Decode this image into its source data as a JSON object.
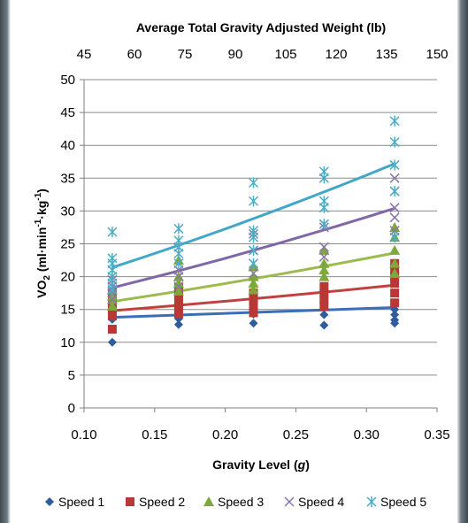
{
  "chart_data": {
    "type": "scatter",
    "title": "Average Total Gravity Adjusted Weight (lb)",
    "top_axis": {
      "label": "Average Total Gravity Adjusted Weight (lb)",
      "ticks": [
        "45",
        "60",
        "75",
        "90",
        "105",
        "120",
        "135",
        "150"
      ]
    },
    "xlabel_text": "Gravity Level (",
    "xlabel_var": "g",
    "xlabel_close": ")",
    "ylabel": {
      "main": "VO",
      "sub": "2",
      "rest": " (ml·min",
      "sup1": "-1",
      "mid": "·kg",
      "sup2": "-1",
      "end": ")"
    },
    "xlim": [
      0.1,
      0.35
    ],
    "ylim": [
      0,
      50
    ],
    "x_ticks": [
      "0.10",
      "0.15",
      "0.20",
      "0.25",
      "0.30",
      "0.35"
    ],
    "y_ticks": [
      "0",
      "5",
      "10",
      "15",
      "20",
      "25",
      "30",
      "35",
      "40",
      "45",
      "50"
    ],
    "grid": "horizontal",
    "legend": "bottom",
    "series": [
      {
        "name": "Speed 1",
        "color": "#2e5c9e",
        "marker": "diamond",
        "points": [
          [
            0.12,
            10.0
          ],
          [
            0.12,
            13.5
          ],
          [
            0.12,
            14.0
          ],
          [
            0.12,
            14.6
          ],
          [
            0.12,
            15.2
          ],
          [
            0.167,
            12.7
          ],
          [
            0.167,
            13.6
          ],
          [
            0.167,
            14.2
          ],
          [
            0.22,
            12.9
          ],
          [
            0.22,
            14.3
          ],
          [
            0.27,
            12.6
          ],
          [
            0.27,
            14.2
          ],
          [
            0.32,
            12.9
          ],
          [
            0.32,
            13.4
          ],
          [
            0.32,
            14.2
          ],
          [
            0.32,
            15.0
          ]
        ],
        "trend": [
          [
            0.12,
            13.8
          ],
          [
            0.32,
            15.3
          ]
        ],
        "trend_color": "#3a6fb7"
      },
      {
        "name": "Speed 2",
        "color": "#b83836",
        "marker": "square",
        "points": [
          [
            0.12,
            12.0
          ],
          [
            0.12,
            14.0
          ],
          [
            0.12,
            15.0
          ],
          [
            0.12,
            16.0
          ],
          [
            0.12,
            17.0
          ],
          [
            0.12,
            17.6
          ],
          [
            0.167,
            14.3
          ],
          [
            0.167,
            15.3
          ],
          [
            0.167,
            16.3
          ],
          [
            0.167,
            17.3
          ],
          [
            0.167,
            18.3
          ],
          [
            0.22,
            14.5
          ],
          [
            0.22,
            15.6
          ],
          [
            0.22,
            16.6
          ],
          [
            0.22,
            17.5
          ],
          [
            0.27,
            15.5
          ],
          [
            0.27,
            16.5
          ],
          [
            0.27,
            17.5
          ],
          [
            0.27,
            18.5
          ],
          [
            0.32,
            16.0
          ],
          [
            0.32,
            17.5
          ],
          [
            0.32,
            19.0
          ],
          [
            0.32,
            20.0
          ],
          [
            0.32,
            21.0
          ],
          [
            0.32,
            22.0
          ]
        ],
        "trend": [
          [
            0.12,
            14.8
          ],
          [
            0.32,
            18.7
          ]
        ],
        "trend_color": "#c0413f"
      },
      {
        "name": "Speed 3",
        "color": "#7ea83a",
        "marker": "triangle",
        "points": [
          [
            0.12,
            15.5
          ],
          [
            0.12,
            16.5
          ],
          [
            0.12,
            17.0
          ],
          [
            0.12,
            18.0
          ],
          [
            0.167,
            17.8
          ],
          [
            0.167,
            19.0
          ],
          [
            0.167,
            20.0
          ],
          [
            0.167,
            22.5
          ],
          [
            0.22,
            18.0
          ],
          [
            0.22,
            19.0
          ],
          [
            0.22,
            20.0
          ],
          [
            0.22,
            21.5
          ],
          [
            0.27,
            20.0
          ],
          [
            0.27,
            21.0
          ],
          [
            0.27,
            22.0
          ],
          [
            0.27,
            24.0
          ],
          [
            0.32,
            20.5
          ],
          [
            0.32,
            22.0
          ],
          [
            0.32,
            24.0
          ],
          [
            0.32,
            26.0
          ],
          [
            0.32,
            27.5
          ]
        ],
        "trend": [
          [
            0.12,
            16.2
          ],
          [
            0.32,
            23.6
          ]
        ],
        "trend_color": "#9bbb4f"
      },
      {
        "name": "Speed 4",
        "color": "#8a76a8",
        "marker": "x",
        "points": [
          [
            0.12,
            16.5
          ],
          [
            0.12,
            17.5
          ],
          [
            0.12,
            18.5
          ],
          [
            0.12,
            19.5
          ],
          [
            0.167,
            18.5
          ],
          [
            0.167,
            20.0
          ],
          [
            0.167,
            21.0
          ],
          [
            0.22,
            20.5
          ],
          [
            0.22,
            22.0
          ],
          [
            0.22,
            24.0
          ],
          [
            0.22,
            26.5
          ],
          [
            0.27,
            23.0
          ],
          [
            0.27,
            24.5
          ],
          [
            0.27,
            27.5
          ],
          [
            0.27,
            28.0
          ],
          [
            0.32,
            27.0
          ],
          [
            0.32,
            29.0
          ],
          [
            0.32,
            30.5
          ],
          [
            0.32,
            33.0
          ],
          [
            0.32,
            35.0
          ]
        ],
        "trend": [
          [
            0.12,
            18.3
          ],
          [
            0.32,
            30.4
          ]
        ],
        "trend_color": "#8067a8"
      },
      {
        "name": "Speed 5",
        "color": "#4bacc6",
        "marker": "asterisk",
        "points": [
          [
            0.12,
            18.0
          ],
          [
            0.12,
            19.0
          ],
          [
            0.12,
            20.0
          ],
          [
            0.12,
            21.0
          ],
          [
            0.12,
            22.0
          ],
          [
            0.12,
            22.8
          ],
          [
            0.12,
            26.8
          ],
          [
            0.167,
            22.0
          ],
          [
            0.167,
            23.5
          ],
          [
            0.167,
            24.5
          ],
          [
            0.167,
            25.5
          ],
          [
            0.167,
            27.3
          ],
          [
            0.22,
            22.0
          ],
          [
            0.22,
            24.0
          ],
          [
            0.22,
            26.0
          ],
          [
            0.22,
            27.0
          ],
          [
            0.22,
            31.5
          ],
          [
            0.22,
            34.3
          ],
          [
            0.27,
            28.0
          ],
          [
            0.27,
            30.5
          ],
          [
            0.27,
            31.5
          ],
          [
            0.27,
            35.0
          ],
          [
            0.27,
            36.0
          ],
          [
            0.32,
            26.0
          ],
          [
            0.32,
            33.0
          ],
          [
            0.32,
            37.0
          ],
          [
            0.32,
            40.5
          ],
          [
            0.32,
            43.7
          ]
        ],
        "trend": [
          [
            0.12,
            21.4
          ],
          [
            0.32,
            37.2
          ]
        ],
        "trend_color": "#41a6c8"
      }
    ]
  }
}
